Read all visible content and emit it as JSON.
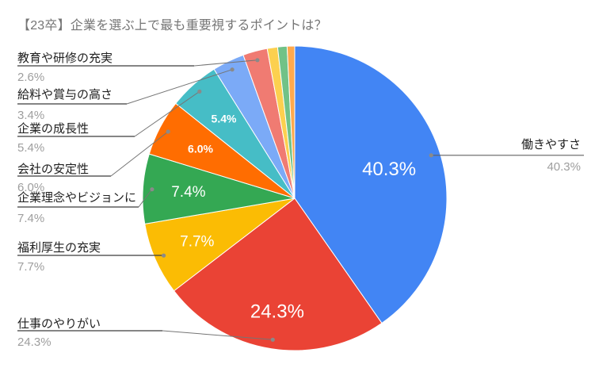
{
  "header": {
    "title": "【23卒】企業を選ぶ上で最も重要視するポイントは？",
    "title_color": "#757575"
  },
  "chart_data": {
    "type": "pie",
    "title": "【23卒】企業を選ぶ上で最も重要視するポイントは？",
    "unit": "%",
    "direction": "clockwise",
    "start_angle_deg": 0,
    "legend_position": "none",
    "label_style": "callout-with-leader-line",
    "background": "#ffffff",
    "slice_percent_text_color": "#ffffff",
    "callout_label_color": "#212121",
    "callout_percent_color": "#9e9e9e",
    "slices": [
      {
        "label": "働きやすさ",
        "value": 40.3,
        "pct_label": "40.3%",
        "color": "#4285F4",
        "callout": "right"
      },
      {
        "label": "仕事のやりがい",
        "value": 24.3,
        "pct_label": "24.3%",
        "color": "#EA4335",
        "callout": "left"
      },
      {
        "label": "福利厚生の充実",
        "value": 7.7,
        "pct_label": "7.7%",
        "color": "#FBBC04",
        "callout": "left"
      },
      {
        "label": "企業理念やビジョンに",
        "value": 7.4,
        "pct_label": "7.4%",
        "color": "#34A853",
        "callout": "left"
      },
      {
        "label": "会社の安定性",
        "value": 6.0,
        "pct_label": "6.0%",
        "color": "#FF6D01",
        "callout": "left"
      },
      {
        "label": "企業の成長性",
        "value": 5.4,
        "pct_label": "5.4%",
        "color": "#46BDC6",
        "callout": "left"
      },
      {
        "label": "給料や賞与の高さ",
        "value": 3.4,
        "pct_label": "3.4%",
        "color": "#7BAAF7",
        "callout": "left"
      },
      {
        "label": "教育や研修の充実",
        "value": 2.6,
        "pct_label": "2.6%",
        "color": "#F07B72",
        "callout": "left"
      },
      {
        "label": "",
        "value": 1.1,
        "pct_label": "",
        "color": "#FCD04F",
        "callout": "none"
      },
      {
        "label": "",
        "value": 1.0,
        "pct_label": "",
        "color": "#71C287",
        "callout": "none"
      },
      {
        "label": "",
        "value": 0.8,
        "pct_label": "",
        "color": "#FFA94D",
        "callout": "none"
      }
    ]
  }
}
